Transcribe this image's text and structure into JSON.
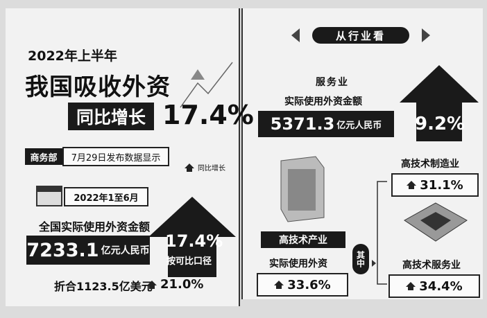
{
  "left": {
    "period": "2022年上半年",
    "headline": "我国吸收外资",
    "growth_label": "同比增长",
    "growth_value": "17.4%",
    "source": "商务部",
    "release_note": "7月29日发布数据显示",
    "legend": "同比增长",
    "date_range": "2022年1至6月",
    "metric_label": "全国实际使用外资金额",
    "metric_value": "7233.1",
    "metric_unit": "亿元人民币",
    "comparable_value": "17.4%",
    "comparable_label": "按可比口径",
    "usd_amount": "折合1123.5亿美元",
    "usd_growth": "21.0%"
  },
  "right": {
    "section_title": "从行业看",
    "service": {
      "label": "服务业",
      "metric_label": "实际使用外资金额",
      "value": "5371.3",
      "unit": "亿元人民币",
      "growth": "9.2%"
    },
    "hightech": {
      "label": "高技术产业",
      "metric_label": "实际使用外资",
      "growth": "33.6%"
    },
    "among": "其中",
    "manufacturing": {
      "label": "高技术制造业",
      "growth": "31.1%"
    },
    "hightech_services": {
      "label": "高技术服务业",
      "growth": "34.4%"
    }
  }
}
